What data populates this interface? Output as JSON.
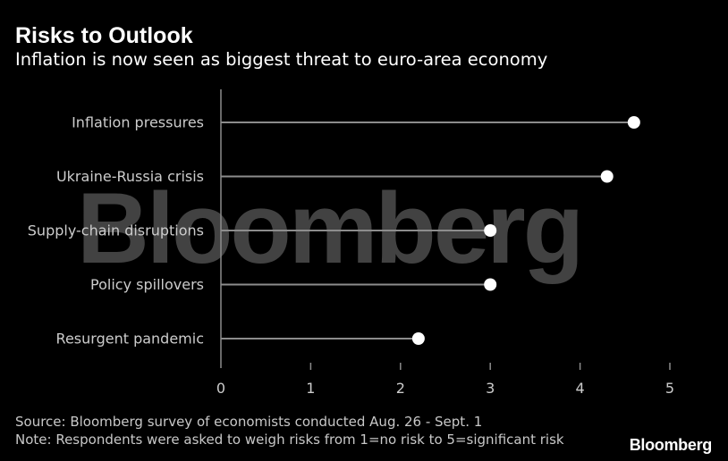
{
  "title": "Risks to Outlook",
  "subtitle": "Inflation is now seen as biggest threat to euro-area economy",
  "source": "Source: Bloomberg survey of economists conducted Aug. 26 - Sept. 1",
  "note": "Note: Respondents were asked to weigh risks from 1=no risk to 5=significant risk",
  "brand": "Bloomberg",
  "watermark": "Bloomberg",
  "colors": {
    "background": "#000000",
    "stem": "#8c8c8c",
    "dot": "#ffffff",
    "text": "#cccccc"
  },
  "chart_data": {
    "type": "lollipop",
    "categories": [
      "Inflation pressures",
      "Ukraine-Russia crisis",
      "Supply-chain disruptions",
      "Policy spillovers",
      "Resurgent pandemic"
    ],
    "values": [
      4.6,
      4.3,
      3.0,
      3.0,
      2.2
    ],
    "xlim": [
      0,
      5
    ],
    "xticks": [
      0,
      1,
      2,
      3,
      4,
      5
    ],
    "grid": false,
    "legend": "none"
  }
}
